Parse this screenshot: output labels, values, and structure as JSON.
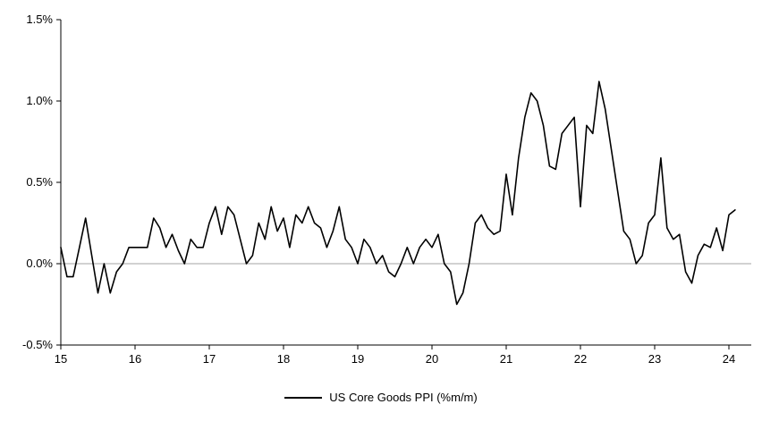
{
  "chart_data": {
    "type": "line",
    "title": "",
    "xlabel": "",
    "ylabel": "",
    "x_start_year": 2015,
    "x_frequency": "monthly",
    "ylim": [
      -0.5,
      1.5
    ],
    "grid": "zero-line-only",
    "legend_position": "bottom-center",
    "line_color": "#000000",
    "zero_line_color": "#a6a6a6",
    "axis_color": "#000000",
    "y_ticks": [
      {
        "v": 1.5,
        "label": "1.5%"
      },
      {
        "v": 1.0,
        "label": "1.0%"
      },
      {
        "v": 0.5,
        "label": "0.5%"
      },
      {
        "v": 0.0,
        "label": "0.0%"
      },
      {
        "v": -0.5,
        "label": "-0.5%"
      }
    ],
    "x_ticks": [
      {
        "offset_years": 0,
        "label": "15"
      },
      {
        "offset_years": 1,
        "label": "16"
      },
      {
        "offset_years": 2,
        "label": "17"
      },
      {
        "offset_years": 3,
        "label": "18"
      },
      {
        "offset_years": 4,
        "label": "19"
      },
      {
        "offset_years": 5,
        "label": "20"
      },
      {
        "offset_years": 6,
        "label": "21"
      },
      {
        "offset_years": 7,
        "label": "22"
      },
      {
        "offset_years": 8,
        "label": "23"
      },
      {
        "offset_years": 9,
        "label": "24"
      }
    ],
    "series": [
      {
        "name": "US Core Goods PPI (%m/m)",
        "values": [
          0.1,
          -0.08,
          -0.08,
          0.1,
          0.28,
          0.05,
          -0.18,
          0.0,
          -0.18,
          -0.05,
          0.0,
          0.1,
          0.1,
          0.1,
          0.1,
          0.28,
          0.22,
          0.1,
          0.18,
          0.08,
          0.0,
          0.15,
          0.1,
          0.1,
          0.25,
          0.35,
          0.18,
          0.35,
          0.3,
          0.15,
          0.0,
          0.05,
          0.25,
          0.15,
          0.35,
          0.2,
          0.28,
          0.1,
          0.3,
          0.25,
          0.35,
          0.25,
          0.22,
          0.1,
          0.2,
          0.35,
          0.15,
          0.1,
          0.0,
          0.15,
          0.1,
          0.0,
          0.05,
          -0.05,
          -0.08,
          0.0,
          0.1,
          0.0,
          0.1,
          0.15,
          0.1,
          0.18,
          0.0,
          -0.05,
          -0.25,
          -0.18,
          0.0,
          0.25,
          0.3,
          0.22,
          0.18,
          0.2,
          0.55,
          0.3,
          0.65,
          0.9,
          1.05,
          1.0,
          0.85,
          0.6,
          0.58,
          0.8,
          0.85,
          0.9,
          0.35,
          0.85,
          0.8,
          1.12,
          0.95,
          0.7,
          0.45,
          0.2,
          0.15,
          0.0,
          0.05,
          0.25,
          0.3,
          0.65,
          0.22,
          0.15,
          0.18,
          -0.05,
          -0.12,
          0.05,
          0.12,
          0.1,
          0.22,
          0.08,
          0.3,
          0.33
        ]
      }
    ]
  }
}
